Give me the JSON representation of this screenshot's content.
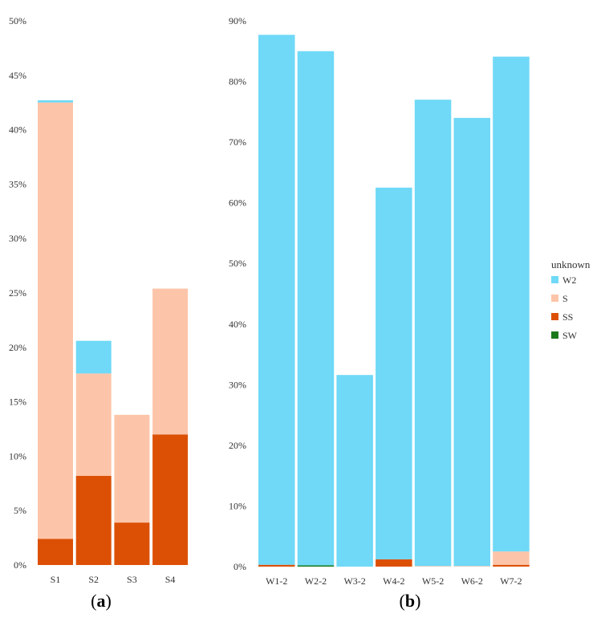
{
  "chart_data": [
    {
      "type": "bar",
      "stacked": true,
      "panel_label": "a",
      "categories": [
        "S1",
        "S2",
        "S3",
        "S4"
      ],
      "ylim": [
        0,
        50
      ],
      "ytick_labels": [
        "0%",
        "5%",
        "10%",
        "15%",
        "20%",
        "25%",
        "30%",
        "35%",
        "40%",
        "45%",
        "50%"
      ],
      "series": [
        {
          "name": "SW",
          "color": "#1a7a1a",
          "values": [
            0,
            0,
            0,
            0
          ]
        },
        {
          "name": "SS",
          "color": "#dc5005",
          "values": [
            2.4,
            8.2,
            3.9,
            12.0
          ]
        },
        {
          "name": "S",
          "color": "#fcc5a9",
          "values": [
            40.1,
            9.4,
            9.9,
            13.4
          ]
        },
        {
          "name": "W2",
          "color": "#6fd9f7",
          "values": [
            0.2,
            3.0,
            0,
            0
          ]
        }
      ]
    },
    {
      "type": "bar",
      "stacked": true,
      "panel_label": "b",
      "categories": [
        "W1-2",
        "W2-2",
        "W3-2",
        "W4-2",
        "W5-2",
        "W6-2",
        "W7-2"
      ],
      "ylim": [
        0,
        90
      ],
      "ytick_labels": [
        "0%",
        "10%",
        "20%",
        "30%",
        "40%",
        "50%",
        "60%",
        "70%",
        "80%",
        "90%"
      ],
      "series": [
        {
          "name": "SW",
          "color": "#1a7a1a",
          "values": [
            0,
            0.2,
            0,
            0,
            0,
            0,
            0
          ]
        },
        {
          "name": "SS",
          "color": "#dc5005",
          "values": [
            0.3,
            0,
            0,
            1.2,
            0,
            0,
            0.3
          ]
        },
        {
          "name": "S",
          "color": "#fcc5a9",
          "values": [
            0,
            0,
            0,
            0,
            0.1,
            0.1,
            2.2
          ]
        },
        {
          "name": "W2",
          "color": "#6fd9f7",
          "values": [
            87.4,
            84.8,
            31.6,
            61.3,
            76.9,
            73.9,
            81.6
          ]
        }
      ]
    }
  ],
  "legend": {
    "title": "unknown",
    "items": [
      {
        "label": "W2",
        "color": "#6fd9f7"
      },
      {
        "label": "S",
        "color": "#fcc5a9"
      },
      {
        "label": "SS",
        "color": "#dc5005"
      },
      {
        "label": "SW",
        "color": "#1a7a1a"
      }
    ]
  }
}
